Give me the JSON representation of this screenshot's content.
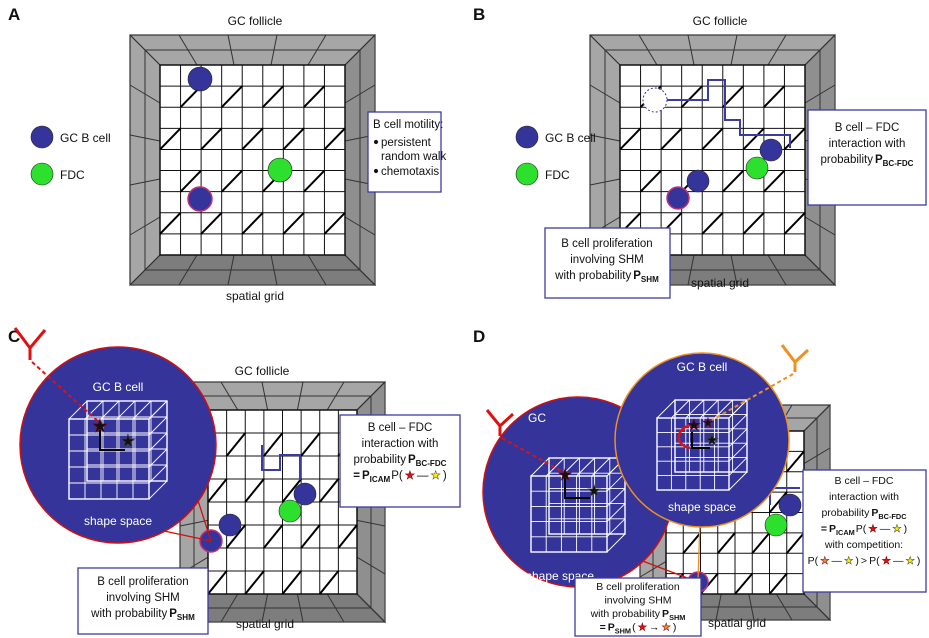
{
  "panels": [
    {
      "label": "A",
      "follicle": "GC follicle",
      "legend": [
        "GC B cell",
        "FDC"
      ],
      "motility": {
        "title": "B cell motility:",
        "items": [
          [
            "persistent",
            "random walk"
          ],
          [
            "chemotaxis"
          ]
        ]
      },
      "grid": "spatial grid"
    },
    {
      "label": "B",
      "follicle": "GC follicle",
      "legend": [
        "GC B cell",
        "FDC"
      ],
      "interaction": [
        [
          "B cell – FDC"
        ],
        [
          "interaction with"
        ],
        [
          "probability",
          "P",
          "BC-FDC"
        ]
      ],
      "proliferation": [
        [
          "B cell proliferation"
        ],
        [
          "involving SHM"
        ],
        [
          "with probability",
          "P",
          "SHM"
        ]
      ],
      "grid": "spatial grid"
    },
    {
      "label": "C",
      "follicle": "GC follicle",
      "shape_space": [
        {
          "title": "GC B cell",
          "caption": "shape space"
        }
      ],
      "interaction": [
        [
          "B cell – FDC"
        ],
        [
          "interaction with"
        ],
        [
          "probability",
          "P",
          "BC-FDC"
        ],
        [
          "=",
          "P",
          "ICAM",
          "P(",
          "★",
          "—",
          "★",
          ")"
        ]
      ],
      "proliferation": [
        [
          "B cell proliferation"
        ],
        [
          "involving SHM"
        ],
        [
          "with probability",
          "P",
          "SHM"
        ]
      ],
      "grid": "spatial grid"
    },
    {
      "label": "D",
      "shape_space": [
        {
          "title": "GC",
          "caption": "shape space"
        },
        {
          "title": "GC B cell",
          "caption": "shape space"
        }
      ],
      "interaction": [
        [
          "B cell – FDC"
        ],
        [
          "interaction with"
        ],
        [
          "probability",
          "P",
          "BC-FDC"
        ],
        [
          "=",
          "P",
          "ICAM",
          "P(",
          "★",
          "—",
          "★",
          ")"
        ],
        [
          "with competition:"
        ],
        [
          "P(",
          "★",
          "—",
          "★",
          ")",
          ">",
          "P(",
          "★",
          "—",
          "★",
          ")"
        ]
      ],
      "proliferation": [
        [
          "B cell proliferation"
        ],
        [
          "involving SHM"
        ],
        [
          "with probability",
          "P",
          "SHM"
        ],
        [
          "=",
          "P",
          "SHM",
          "(",
          "★",
          "→",
          "★",
          ")"
        ]
      ],
      "grid": "spatial grid"
    }
  ]
}
